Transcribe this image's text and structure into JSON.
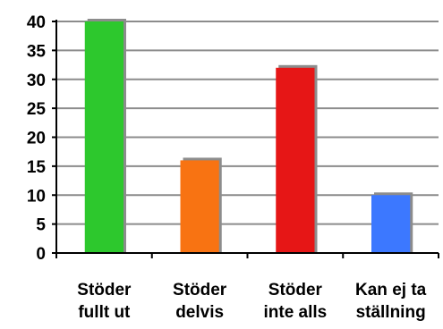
{
  "chart_data": {
    "type": "bar",
    "categories": [
      [
        "Stöder",
        "fullt ut"
      ],
      [
        "Stöder",
        "delvis"
      ],
      [
        "Stöder",
        "inte alls"
      ],
      [
        "Kan ej ta",
        "ställning"
      ]
    ],
    "values": [
      40,
      16,
      32,
      10
    ],
    "colors": [
      "#2dc82d",
      "#f87312",
      "#e61616",
      "#3c78ff"
    ],
    "ylim": [
      0,
      40
    ],
    "yticks": [
      0,
      5,
      10,
      15,
      20,
      25,
      30,
      35,
      40
    ],
    "grid": true,
    "legend": "none"
  }
}
